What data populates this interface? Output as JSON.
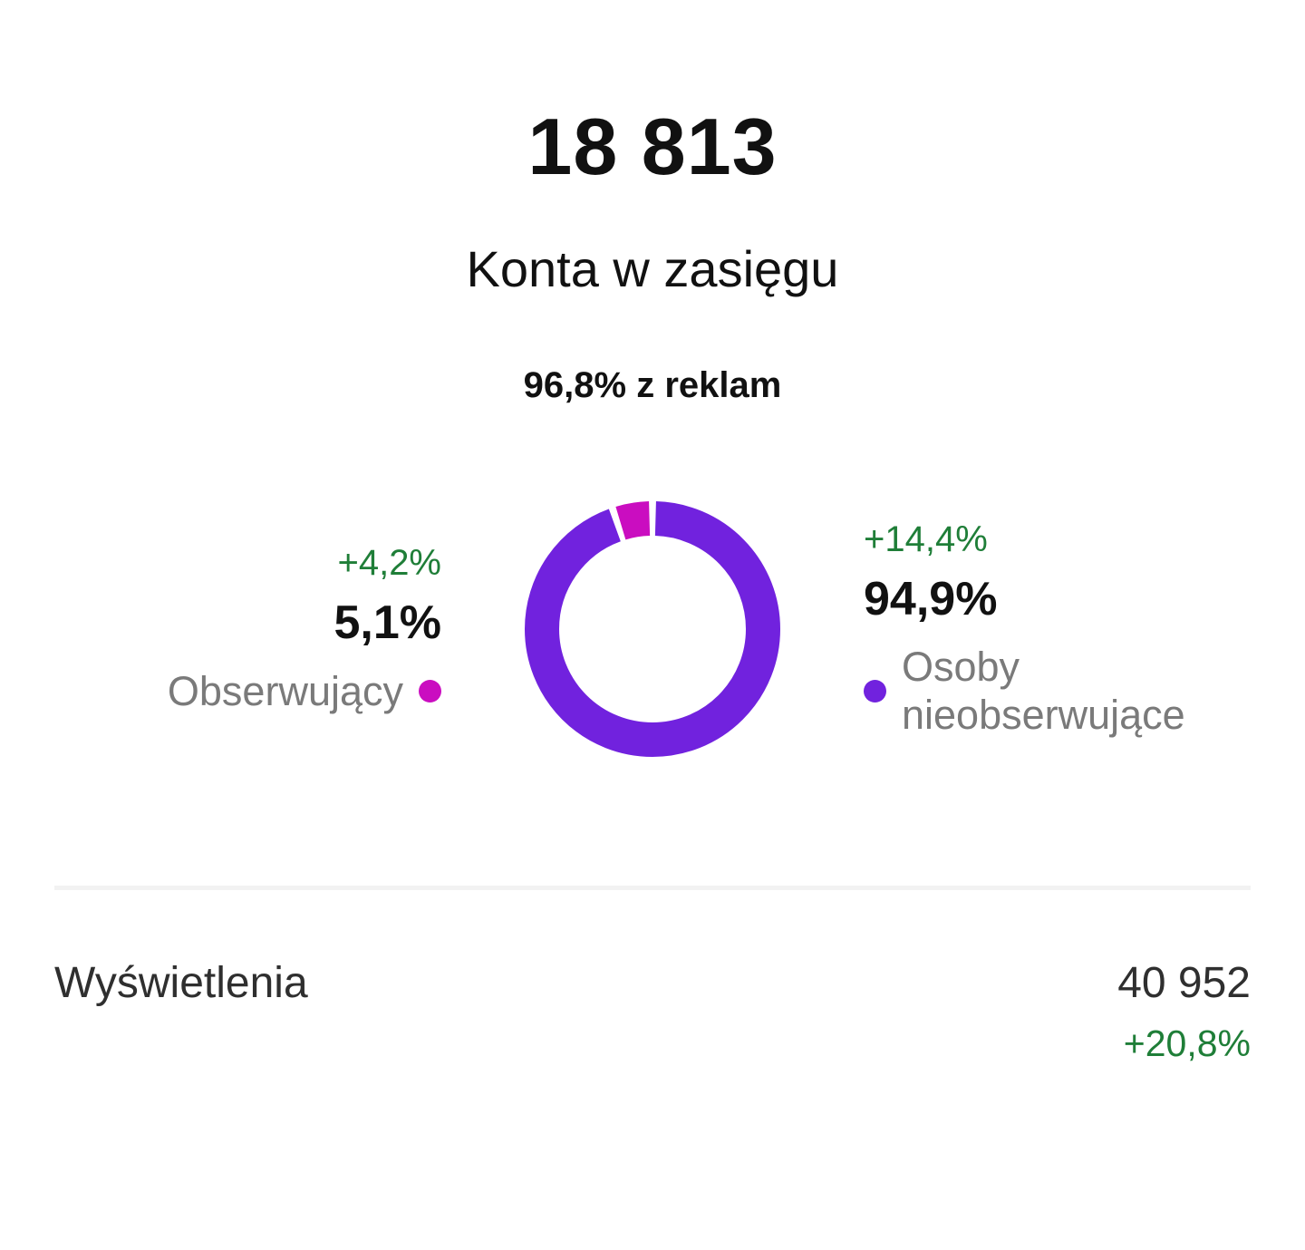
{
  "header": {
    "total": "18 813",
    "subtitle": "Konta w zasięgu",
    "ads_note": "96,8% z reklam"
  },
  "chart_data": {
    "type": "pie",
    "variant": "donut",
    "title": "Konta w zasięgu",
    "total_value": 18813,
    "total_display": "18 813",
    "ads_share_pct": 96.8,
    "ads_share_display": "96,8% z reklam",
    "start_angle_deg": 0,
    "direction": "clockwise",
    "legend_position": "sides",
    "segments": [
      {
        "label": "Osoby nieobserwujące",
        "pct": 94.9,
        "display": "94,9%",
        "delta": "+14,4%",
        "color": "#7122DE"
      },
      {
        "label": "Obserwujący",
        "pct": 5.1,
        "display": "5,1%",
        "delta": "+4,2%",
        "color": "#CA0DC0"
      }
    ]
  },
  "footer": {
    "label": "Wyświetlenia",
    "value": "40 952",
    "delta": "+20,8%"
  },
  "colors": {
    "green": "#1F7E38",
    "purple": "#7122DE",
    "magenta": "#CA0DC0",
    "label-gray": "#7A7A7A",
    "text-dark": "#111111",
    "footer-text": "#2F2F2F",
    "divider": "#F2F2F2"
  }
}
